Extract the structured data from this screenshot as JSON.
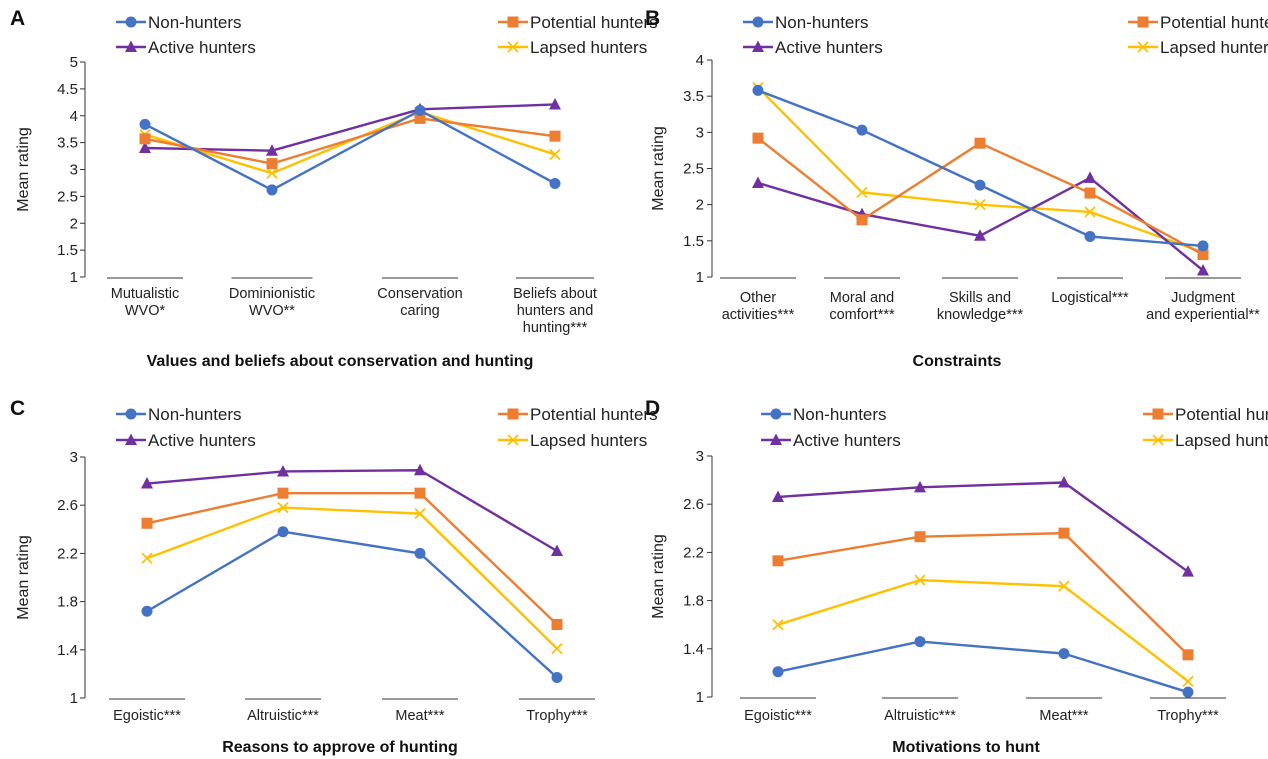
{
  "figure": {
    "colors": {
      "Non-hunters": "#4472c4",
      "Potential hunters": "#ed7d31",
      "Active hunters": "#7030a0",
      "Lapsed hunters": "#ffc000"
    },
    "markers": {
      "Non-hunters": "circle",
      "Potential hunters": "square",
      "Active hunters": "triangle",
      "Lapsed hunters": "x"
    }
  },
  "chart_data": [
    {
      "panel": "A",
      "type": "line",
      "xlabel": "Values and beliefs about conservation and hunting",
      "ylabel": "Mean rating",
      "categories": [
        [
          "Mutualistic",
          "WVO*"
        ],
        [
          "Dominionistic",
          "WVO**"
        ],
        [
          "Conservation",
          "caring"
        ],
        [
          "Beliefs about",
          "hunters and",
          "hunting***"
        ]
      ],
      "ylim": [
        1,
        5
      ],
      "yticks": [
        "1",
        "1.5",
        "2",
        "2.5",
        "3",
        "3.5",
        "4",
        "4.5",
        "5"
      ],
      "legend": [
        "Non-hunters",
        "Potential hunters",
        "Active hunters",
        "Lapsed hunters"
      ],
      "series": [
        {
          "name": "Non-hunters",
          "values": [
            3.84,
            2.62,
            4.1,
            2.74
          ]
        },
        {
          "name": "Potential hunters",
          "values": [
            3.57,
            3.11,
            3.95,
            3.62
          ]
        },
        {
          "name": "Active hunters",
          "values": [
            3.4,
            3.35,
            4.12,
            4.21
          ]
        },
        {
          "name": "Lapsed hunters",
          "values": [
            3.65,
            2.93,
            4.07,
            3.28
          ]
        }
      ]
    },
    {
      "panel": "B",
      "type": "line",
      "xlabel": "Constraints",
      "ylabel": "Mean rating",
      "categories": [
        [
          "Other",
          "activities***"
        ],
        [
          "Moral and",
          "comfort***"
        ],
        [
          "Skills and",
          "knowledge***"
        ],
        [
          "Logistical***"
        ],
        [
          "Judgment",
          "and experiential**"
        ]
      ],
      "ylim": [
        1,
        4
      ],
      "yticks": [
        "1",
        "1.5",
        "2",
        "2.5",
        "3",
        "3.5",
        "4"
      ],
      "legend": [
        "Non-hunters",
        "Potential hunters",
        "Active hunters",
        "Lapsed hunters"
      ],
      "series": [
        {
          "name": "Non-hunters",
          "values": [
            3.58,
            3.03,
            2.27,
            1.56,
            1.43
          ]
        },
        {
          "name": "Potential hunters",
          "values": [
            2.92,
            1.79,
            2.85,
            2.16,
            1.31
          ]
        },
        {
          "name": "Active hunters",
          "values": [
            2.3,
            1.87,
            1.57,
            2.37,
            1.09
          ]
        },
        {
          "name": "Lapsed hunters",
          "values": [
            3.62,
            2.17,
            2.0,
            1.9,
            1.34
          ]
        }
      ]
    },
    {
      "panel": "C",
      "type": "line",
      "xlabel": "Reasons to approve of hunting",
      "ylabel": "Mean rating",
      "categories": [
        [
          "Egoistic***"
        ],
        [
          "Altruistic***"
        ],
        [
          "Meat***"
        ],
        [
          "Trophy***"
        ]
      ],
      "ylim": [
        1,
        3
      ],
      "yticks": [
        "1",
        "1.4",
        "1.8",
        "2.2",
        "2.6",
        "3"
      ],
      "legend": [
        "Non-hunters",
        "Potential hunters",
        "Active hunters",
        "Lapsed hunters"
      ],
      "series": [
        {
          "name": "Non-hunters",
          "values": [
            1.72,
            2.38,
            2.2,
            1.17
          ]
        },
        {
          "name": "Potential hunters",
          "values": [
            2.45,
            2.7,
            2.7,
            1.61
          ]
        },
        {
          "name": "Active hunters",
          "values": [
            2.78,
            2.88,
            2.89,
            2.22
          ]
        },
        {
          "name": "Lapsed hunters",
          "values": [
            2.16,
            2.58,
            2.53,
            1.41
          ]
        }
      ]
    },
    {
      "panel": "D",
      "type": "line",
      "xlabel": "Motivations to hunt",
      "ylabel": "Mean rating",
      "categories": [
        [
          "Egoistic***"
        ],
        [
          "Altruistic***"
        ],
        [
          "Meat***"
        ],
        [
          "Trophy***"
        ]
      ],
      "ylim": [
        1,
        3
      ],
      "yticks": [
        "1",
        "1.4",
        "1.8",
        "2.2",
        "2.6",
        "3"
      ],
      "legend": [
        "Non-hunters",
        "Potential hunters",
        "Active hunters",
        "Lapsed hunters"
      ],
      "series": [
        {
          "name": "Non-hunters",
          "values": [
            1.21,
            1.46,
            1.36,
            1.04
          ]
        },
        {
          "name": "Potential hunters",
          "values": [
            2.13,
            2.33,
            2.36,
            1.35
          ]
        },
        {
          "name": "Active hunters",
          "values": [
            2.66,
            2.74,
            2.78,
            2.04
          ]
        },
        {
          "name": "Lapsed hunters",
          "values": [
            1.6,
            1.97,
            1.92,
            1.13
          ]
        }
      ]
    }
  ]
}
